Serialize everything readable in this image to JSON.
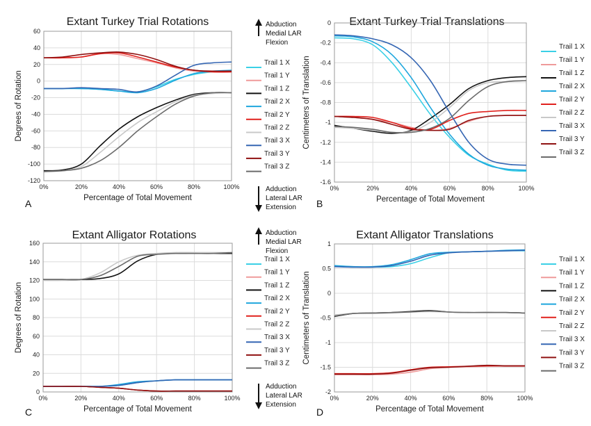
{
  "colors": {
    "Trail 1 X": "#3ad0e6",
    "Trail 1 Y": "#ef9a9a",
    "Trail 1 Z": "#111111",
    "Trail 2 X": "#1ea6dd",
    "Trail 2 Y": "#e0201c",
    "Trail 2 Z": "#c8c8c8",
    "Trail 3 X": "#3566b3",
    "Trail 3 Y": "#8f1111",
    "Trail 3 Z": "#6b6b6b"
  },
  "annotations": {
    "top": {
      "line1": "Abduction",
      "line2": "Medial LAR",
      "line3": "Flexion"
    },
    "bottom": {
      "line1": "Adduction",
      "line2": "Lateral LAR",
      "line3": "Extension"
    }
  },
  "chart_data": [
    {
      "panel": "A",
      "type": "line",
      "title": "Extant Turkey Trial Rotations",
      "xlabel": "Percentage of Total Movement",
      "ylabel": "Degrees of Rotation",
      "xlim": [
        0,
        100
      ],
      "ylim": [
        -120,
        60
      ],
      "xticks": [
        "0%",
        "20%",
        "40%",
        "60%",
        "80%",
        "100%"
      ],
      "yticks": [
        60,
        40,
        20,
        0,
        -20,
        -40,
        -60,
        -80,
        -100,
        -120
      ],
      "legend": [
        "Trail 1 X",
        "Trail 1  Y",
        "Trail 1 Z",
        "Trail 2 X",
        "Trail 2 Y",
        "Trail 2 Z",
        "Trail 3 X",
        "Trail 3 Y",
        "Trail 3 Z"
      ],
      "x": [
        0,
        10,
        20,
        30,
        40,
        50,
        60,
        70,
        80,
        90,
        100
      ],
      "series": [
        {
          "name": "Trail 1 X",
          "values": [
            -9,
            -9,
            -9,
            -10,
            -12,
            -13,
            -7,
            2,
            8,
            11,
            12
          ]
        },
        {
          "name": "Trail 1  Y",
          "values": [
            28,
            28,
            29,
            33,
            32,
            27,
            22,
            16,
            12,
            11,
            11
          ]
        },
        {
          "name": "Trail 1 Z",
          "values": [
            -108,
            -107,
            -100,
            -78,
            -58,
            -43,
            -32,
            -23,
            -16,
            -14,
            -14
          ]
        },
        {
          "name": "Trail 2 X",
          "values": [
            -9,
            -9,
            -9,
            -10,
            -12,
            -14,
            -9,
            1,
            9,
            12,
            13
          ]
        },
        {
          "name": "Trail 2 Y",
          "values": [
            28,
            28,
            29,
            33,
            34,
            29,
            23,
            17,
            13,
            11,
            11
          ]
        },
        {
          "name": "Trail 2 Z",
          "values": [
            -109,
            -108,
            -103,
            -86,
            -67,
            -50,
            -37,
            -25,
            -17,
            -15,
            -14
          ]
        },
        {
          "name": "Trail 3 X",
          "values": [
            -9,
            -9,
            -8,
            -9,
            -10,
            -13,
            -6,
            7,
            19,
            22,
            23
          ]
        },
        {
          "name": "Trail 3 Y",
          "values": [
            28,
            29,
            32,
            34,
            35,
            32,
            26,
            18,
            13,
            12,
            12
          ]
        },
        {
          "name": "Trail 3 Z",
          "values": [
            -109,
            -108,
            -105,
            -96,
            -80,
            -60,
            -43,
            -28,
            -18,
            -14,
            -14
          ]
        }
      ]
    },
    {
      "panel": "B",
      "type": "line",
      "title": "Extant Turkey Trial Translations",
      "xlabel": "Percentage of Total Movement",
      "ylabel": "Centimeters of Translation",
      "xlim": [
        0,
        100
      ],
      "ylim": [
        -1.6,
        0
      ],
      "xticks": [
        "0%",
        "20%",
        "40%",
        "60%",
        "80%",
        "100%"
      ],
      "yticks": [
        "0",
        "-0.2",
        "-0.4",
        "-0.6",
        "-0.8",
        "-1",
        "-1.2",
        "-1.4",
        "-1.6"
      ],
      "legend": [
        "Trail 1 X",
        "Trail 1  Y",
        "Trail 1 Z",
        "Trail 2 X",
        "Trail 2 Y",
        "Trail 2 Z",
        "Trail 3 X",
        "Trail 3 Y",
        "Trail 3 Z"
      ],
      "x": [
        0,
        10,
        20,
        30,
        40,
        50,
        60,
        70,
        80,
        90,
        100
      ],
      "series": [
        {
          "name": "Trail 1 X",
          "values": [
            -0.15,
            -0.16,
            -0.22,
            -0.4,
            -0.65,
            -0.92,
            -1.15,
            -1.33,
            -1.42,
            -1.48,
            -1.49
          ]
        },
        {
          "name": "Trail 1  Y",
          "values": [
            -0.94,
            -0.95,
            -0.97,
            -1.0,
            -1.05,
            -1.08,
            -1.06,
            -0.99,
            -0.94,
            -0.93,
            -0.93
          ]
        },
        {
          "name": "Trail 1 Z",
          "values": [
            -1.03,
            -1.06,
            -1.09,
            -1.11,
            -1.08,
            -0.96,
            -0.82,
            -0.66,
            -0.58,
            -0.55,
            -0.54
          ]
        },
        {
          "name": "Trail 2 X",
          "values": [
            -0.13,
            -0.14,
            -0.19,
            -0.32,
            -0.55,
            -0.85,
            -1.12,
            -1.32,
            -1.43,
            -1.47,
            -1.48
          ]
        },
        {
          "name": "Trail 2 Y",
          "values": [
            -0.94,
            -0.94,
            -0.95,
            -1.0,
            -1.06,
            -1.07,
            -0.98,
            -0.91,
            -0.89,
            -0.88,
            -0.88
          ]
        },
        {
          "name": "Trail 2 Z",
          "values": [
            -1.05,
            -1.06,
            -1.08,
            -1.1,
            -1.09,
            -1.0,
            -0.85,
            -0.68,
            -0.6,
            -0.59,
            -0.58
          ]
        },
        {
          "name": "Trail 3 X",
          "values": [
            -0.12,
            -0.13,
            -0.16,
            -0.22,
            -0.35,
            -0.58,
            -0.9,
            -1.2,
            -1.37,
            -1.42,
            -1.43
          ]
        },
        {
          "name": "Trail 3 Y",
          "values": [
            -0.94,
            -0.95,
            -0.97,
            -1.02,
            -1.07,
            -1.08,
            -1.07,
            -0.98,
            -0.94,
            -0.93,
            -0.93
          ]
        },
        {
          "name": "Trail 3 Z",
          "values": [
            -1.04,
            -1.05,
            -1.07,
            -1.1,
            -1.1,
            -1.06,
            -0.96,
            -0.78,
            -0.64,
            -0.59,
            -0.58
          ]
        }
      ]
    },
    {
      "panel": "C",
      "type": "line",
      "title": "Extant Alligator Rotations",
      "xlabel": "Percentage of Total Movement",
      "ylabel": "Degrees of Rotation",
      "xlim": [
        0,
        100
      ],
      "ylim": [
        0,
        160
      ],
      "xticks": [
        "0%",
        "20%",
        "40%",
        "60%",
        "80%",
        "100%"
      ],
      "yticks": [
        160,
        140,
        120,
        100,
        80,
        60,
        40,
        20,
        0
      ],
      "legend": [
        "Trail 1 X",
        "Trail 1  Y",
        "Trail 1 Z",
        "Trail 2 X",
        "Trail 2 Y",
        "Trail 2 Z",
        "Trail 3 X",
        "Trail 3 Y",
        "Trail 3 Z"
      ],
      "x": [
        0,
        10,
        20,
        30,
        40,
        50,
        60,
        70,
        80,
        90,
        100
      ],
      "series": [
        {
          "name": "Trail 1 X",
          "values": [
            6,
            6,
            6,
            6,
            7,
            10,
            12,
            13,
            13,
            13,
            13
          ]
        },
        {
          "name": "Trail 1  Y",
          "values": [
            6,
            6,
            6,
            5,
            4,
            2,
            1,
            1,
            1,
            1,
            1
          ]
        },
        {
          "name": "Trail 1 Z",
          "values": [
            121,
            121,
            121,
            122,
            127,
            141,
            148,
            149,
            149,
            149,
            149
          ]
        },
        {
          "name": "Trail 2 X",
          "values": [
            6,
            6,
            6,
            6,
            8,
            11,
            12,
            13,
            13,
            13,
            13
          ]
        },
        {
          "name": "Trail 2 Y",
          "values": [
            6,
            6,
            6,
            5,
            4,
            2,
            1,
            1,
            1,
            1,
            1
          ]
        },
        {
          "name": "Trail 2 Z",
          "values": [
            120,
            120,
            121,
            128,
            140,
            147,
            149,
            150,
            150,
            150,
            150
          ]
        },
        {
          "name": "Trail 3 X",
          "values": [
            6,
            6,
            6,
            6,
            7,
            10,
            12,
            13,
            13,
            13,
            13
          ]
        },
        {
          "name": "Trail 3 Y",
          "values": [
            6,
            6,
            6,
            5,
            4,
            2,
            1,
            1,
            1,
            1,
            1
          ]
        },
        {
          "name": "Trail 3 Z",
          "values": [
            121,
            121,
            121,
            125,
            135,
            146,
            148,
            149,
            149,
            149,
            150
          ]
        }
      ]
    },
    {
      "panel": "D",
      "type": "line",
      "title": "Extant Alligator Translations",
      "xlabel": "Percentage of Total Movement",
      "ylabel": "Centimeters of Translation",
      "xlim": [
        0,
        100
      ],
      "ylim": [
        -2,
        1
      ],
      "xticks": [
        "0%",
        "20%",
        "40%",
        "60%",
        "80%",
        "100%"
      ],
      "yticks": [
        "1",
        "0.5",
        "0",
        "-0.5",
        "-1",
        "-1.5",
        "-2"
      ],
      "legend": [
        "Trail 1 X",
        "Trail 1  Y",
        "Trail 1 Z",
        "Trail 2 X",
        "Trail 2 Y",
        "Trail 2 Z",
        "Trail 3 X",
        "Trail 3 Y",
        "Trail 3 Z"
      ],
      "x": [
        0,
        10,
        20,
        30,
        40,
        50,
        60,
        70,
        80,
        90,
        100
      ],
      "series": [
        {
          "name": "Trail 1 X",
          "values": [
            0.55,
            0.53,
            0.53,
            0.54,
            0.6,
            0.72,
            0.82,
            0.84,
            0.85,
            0.86,
            0.86
          ]
        },
        {
          "name": "Trail 1  Y",
          "values": [
            -1.65,
            -1.65,
            -1.65,
            -1.64,
            -1.6,
            -1.53,
            -1.5,
            -1.49,
            -1.48,
            -1.48,
            -1.48
          ]
        },
        {
          "name": "Trail 1 Z",
          "values": [
            -0.47,
            -0.41,
            -0.4,
            -0.39,
            -0.37,
            -0.35,
            -0.38,
            -0.39,
            -0.39,
            -0.39,
            -0.4
          ]
        },
        {
          "name": "Trail 2 X",
          "values": [
            0.56,
            0.54,
            0.54,
            0.58,
            0.68,
            0.8,
            0.83,
            0.84,
            0.85,
            0.87,
            0.88
          ]
        },
        {
          "name": "Trail 2 Y",
          "values": [
            -1.63,
            -1.63,
            -1.63,
            -1.61,
            -1.55,
            -1.5,
            -1.49,
            -1.48,
            -1.47,
            -1.47,
            -1.47
          ]
        },
        {
          "name": "Trail 2 Z",
          "values": [
            -0.44,
            -0.41,
            -0.41,
            -0.4,
            -0.38,
            -0.37,
            -0.38,
            -0.39,
            -0.38,
            -0.39,
            -0.4
          ]
        },
        {
          "name": "Trail 3 X",
          "values": [
            0.54,
            0.53,
            0.53,
            0.56,
            0.65,
            0.77,
            0.82,
            0.84,
            0.85,
            0.86,
            0.87
          ]
        },
        {
          "name": "Trail 3 Y",
          "values": [
            -1.64,
            -1.64,
            -1.64,
            -1.62,
            -1.56,
            -1.51,
            -1.5,
            -1.48,
            -1.46,
            -1.47,
            -1.47
          ]
        },
        {
          "name": "Trail 3 Z",
          "values": [
            -0.46,
            -0.41,
            -0.4,
            -0.39,
            -0.38,
            -0.36,
            -0.38,
            -0.39,
            -0.39,
            -0.39,
            -0.4
          ]
        }
      ]
    }
  ]
}
